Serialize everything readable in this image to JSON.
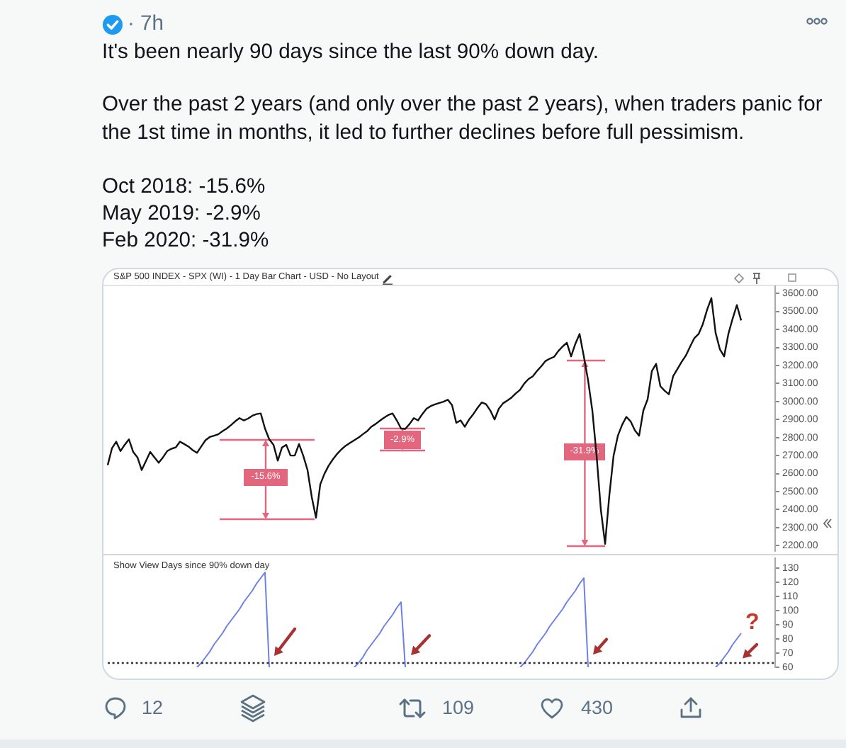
{
  "chart_data": [
    {
      "type": "other",
      "annotations": [
        "· 7h",
        "It's been nearly 90 days since the last 90% down day.",
        "Over the past 2 years (and only over the past 2 years), when traders panic for the 1st time in months, it led to further declines before full pessimism.",
        "Oct 2018: -15.6%",
        "May 2019: -2.9%",
        "Feb 2020: -31.9%",
        "12",
        "109",
        "430"
      ]
    },
    {
      "type": "line",
      "title": "S&P 500 INDEX - SPX (WI) - 1 Day Bar Chart - USD - No Layout",
      "categories": [
        null,
        null,
        null,
        null,
        null,
        null,
        null,
        null,
        null,
        null,
        null,
        null,
        null,
        null,
        null,
        null,
        null,
        null,
        null,
        null,
        null,
        null,
        null,
        null,
        null,
        null,
        null,
        null,
        null,
        null,
        null,
        null,
        null,
        null,
        null,
        null,
        null,
        null,
        null,
        null,
        null,
        null,
        null,
        null,
        null,
        null,
        null,
        null,
        null,
        null,
        null,
        null,
        null,
        null,
        null,
        null,
        null,
        null,
        null,
        null,
        null,
        null,
        null,
        null,
        null,
        null,
        null,
        null,
        null,
        null,
        null,
        null,
        null,
        null,
        null,
        null,
        null,
        null,
        null,
        null,
        null,
        null,
        null,
        null,
        null,
        null,
        null,
        null,
        null,
        null,
        null,
        null,
        null,
        null,
        null,
        null,
        null,
        null,
        null,
        null,
        null,
        null,
        null,
        null,
        null,
        null,
        null,
        null,
        null,
        null,
        null,
        null,
        null,
        null,
        null,
        null,
        null,
        null,
        null,
        null,
        null,
        null,
        null,
        null,
        null,
        null,
        null,
        null,
        null,
        null,
        null,
        null,
        null,
        null,
        null,
        null,
        null,
        null,
        null,
        null,
        null,
        null,
        null,
        null,
        null,
        null,
        null,
        null,
        null,
        null,
        null,
        null,
        null,
        null,
        null,
        null,
        null,
        null
      ],
      "series": [
        {
          "color": "#111111",
          "values": [
            2647,
            2740,
            2777,
            2725,
            2760,
            2790,
            2720,
            2690,
            2620,
            2670,
            2720,
            2690,
            2660,
            2690,
            2725,
            2738,
            2745,
            2777,
            2764,
            2750,
            2730,
            2715,
            2750,
            2785,
            2803,
            2810,
            2818,
            2835,
            2850,
            2869,
            2890,
            2908,
            2895,
            2905,
            2921,
            2930,
            2934,
            2850,
            2790,
            2760,
            2672,
            2745,
            2760,
            2700,
            2700,
            2764,
            2699,
            2620,
            2470,
            2355,
            2540,
            2600,
            2645,
            2680,
            2710,
            2735,
            2755,
            2770,
            2785,
            2800,
            2818,
            2835,
            2860,
            2875,
            2893,
            2910,
            2925,
            2934,
            2895,
            2850,
            2848,
            2875,
            2908,
            2895,
            2930,
            2960,
            2975,
            2984,
            2992,
            2999,
            3010,
            2980,
            2882,
            2895,
            2860,
            2900,
            2930,
            2965,
            2995,
            2985,
            2950,
            2900,
            2960,
            2990,
            3005,
            3022,
            3045,
            3065,
            3100,
            3125,
            3140,
            3170,
            3196,
            3225,
            3238,
            3248,
            3280,
            3305,
            3326,
            3250,
            3320,
            3375,
            3250,
            3117,
            2950,
            2700,
            2400,
            2210,
            2480,
            2700,
            2810,
            2870,
            2915,
            2890,
            2840,
            2810,
            2950,
            3012,
            3169,
            3209,
            3085,
            3060,
            3040,
            3140,
            3180,
            3220,
            3255,
            3305,
            3352,
            3375,
            3430,
            3510,
            3574,
            3380,
            3290,
            3250,
            3375,
            3460,
            3535,
            3450,
            null,
            null,
            null,
            null,
            null,
            null,
            null,
            null
          ]
        }
      ],
      "ylim": [
        2170,
        3640
      ],
      "yticks": [
        {
          "value": 2200,
          "label": "2200.00"
        },
        {
          "value": 2300,
          "label": "2300.00"
        },
        {
          "value": 2400,
          "label": "2400.00"
        },
        {
          "value": 2500,
          "label": "2500.00"
        },
        {
          "value": 2600,
          "label": "2600.00"
        },
        {
          "value": 2700,
          "label": "2700.00"
        },
        {
          "value": 2800,
          "label": "2800.00"
        },
        {
          "value": 2900,
          "label": "2900.00"
        },
        {
          "value": 3000,
          "label": "3000.00"
        },
        {
          "value": 3100,
          "label": "3100.00"
        },
        {
          "value": 3200,
          "label": "3200.00"
        },
        {
          "value": 3300,
          "label": "3300.00"
        },
        {
          "value": 3400,
          "label": "3400.00"
        },
        {
          "value": 3500,
          "label": "3500.00"
        },
        {
          "value": 3600,
          "label": "3600.00"
        }
      ],
      "tick_labels": "y",
      "marker": "none",
      "annotations": [
        "-15.6%",
        "-2.9%",
        "-31.9%"
      ]
    },
    {
      "type": "line",
      "title": "Show View Days since 90% down day",
      "categories": [
        null,
        null,
        null,
        null,
        null,
        null,
        null,
        null,
        null,
        null,
        null,
        null,
        null,
        null,
        null,
        null,
        null,
        null,
        null,
        null,
        null,
        null,
        null,
        null,
        null,
        null,
        null,
        null,
        null,
        null,
        null,
        null,
        null,
        null,
        null,
        null,
        null,
        null,
        null,
        null,
        null,
        null,
        null,
        null,
        null,
        null,
        null,
        null,
        null,
        null,
        null,
        null,
        null,
        null,
        null,
        null,
        null,
        null,
        null,
        null,
        null,
        null,
        null,
        null,
        null,
        null,
        null,
        null,
        null,
        null,
        null,
        null,
        null,
        null,
        null,
        null,
        null,
        null,
        null,
        null,
        null,
        null,
        null,
        null,
        null,
        null,
        null,
        null,
        null,
        null,
        null,
        null,
        null,
        null,
        null,
        null,
        null,
        null,
        null,
        null,
        null,
        null,
        null,
        null,
        null,
        null,
        null,
        null,
        null,
        null,
        null,
        null,
        null,
        null,
        null,
        null,
        null,
        null,
        null,
        null,
        null,
        null,
        null,
        null,
        null,
        null,
        null,
        null,
        null,
        null,
        null,
        null,
        null,
        null,
        null,
        null,
        null,
        null,
        null,
        null,
        null,
        null,
        null,
        null,
        null,
        null,
        null,
        null,
        null,
        null,
        null,
        null,
        null,
        null,
        null,
        null,
        null,
        null
      ],
      "series": [
        {
          "color": "#6d80e6",
          "values": [
            null,
            null,
            null,
            null,
            null,
            null,
            null,
            null,
            null,
            null,
            null,
            null,
            null,
            null,
            null,
            null,
            null,
            null,
            null,
            null,
            null,
            60,
            63,
            67,
            71,
            76,
            80,
            84,
            89,
            93,
            97,
            101,
            106,
            110,
            114,
            119,
            123,
            127,
            60,
            null,
            null,
            null,
            null,
            null,
            null,
            null,
            null,
            null,
            null,
            null,
            null,
            null,
            null,
            null,
            null,
            null,
            null,
            null,
            60,
            63,
            67,
            72,
            76,
            80,
            84,
            89,
            93,
            97,
            102,
            106,
            60,
            null,
            null,
            null,
            null,
            null,
            null,
            null,
            null,
            null,
            null,
            null,
            null,
            null,
            null,
            null,
            null,
            null,
            null,
            null,
            null,
            null,
            null,
            null,
            null,
            null,
            null,
            60,
            63,
            67,
            71,
            76,
            80,
            84,
            89,
            93,
            97,
            101,
            106,
            110,
            114,
            119,
            123,
            60,
            null,
            null,
            null,
            null,
            null,
            null,
            null,
            null,
            null,
            null,
            null,
            null,
            null,
            null,
            null,
            null,
            null,
            null,
            null,
            null,
            null,
            null,
            null,
            null,
            null,
            null,
            null,
            null,
            null,
            60,
            63,
            67,
            71,
            76,
            80,
            84,
            null,
            null,
            null,
            null,
            null,
            null,
            null,
            null
          ]
        }
      ],
      "ylim": [
        60,
        137
      ],
      "yticks": [
        60,
        70,
        80,
        90,
        100,
        110,
        120,
        130
      ],
      "tick_labels": "y",
      "marker": "none",
      "ref_lines": [
        {
          "axis": "y",
          "value": 63,
          "color": "#333333",
          "line_style": "dotted"
        }
      ],
      "annotations": [
        "?"
      ]
    }
  ]
}
